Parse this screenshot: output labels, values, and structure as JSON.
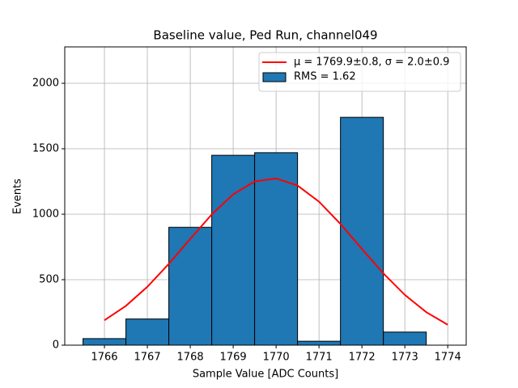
{
  "chart_data": {
    "type": "histogram",
    "title": "Baseline value, Ped Run, channel049",
    "xlabel": "Sample Value [ADC Counts]",
    "ylabel": "Events",
    "bins": [
      1765.5,
      1766.5,
      1767.5,
      1768.5,
      1769.5,
      1770.5,
      1771.5,
      1772.5,
      1773.5
    ],
    "series": [
      {
        "type": "line",
        "name": "μ = 1769.9±0.8, σ = 2.0±0.9",
        "color": "#ff0000",
        "x": [
          1766,
          1766.5,
          1767,
          1767.5,
          1768,
          1768.5,
          1769,
          1769.5,
          1770,
          1770.5,
          1771,
          1771.5,
          1772,
          1772.5,
          1773,
          1773.5,
          1774
        ],
        "values": [
          190,
          300,
          446,
          621,
          812,
          998,
          1152,
          1250,
          1273,
          1219,
          1096,
          926,
          735,
          548,
          384,
          252,
          156
        ]
      },
      {
        "type": "histogram",
        "name": "RMS = 1.62",
        "color": "#1f77b4",
        "values": [
          50,
          200,
          900,
          1450,
          1470,
          30,
          1740,
          100
        ]
      }
    ],
    "xlim": [
      1765.075,
      1774.43
    ],
    "ylim": [
      0,
      2278
    ],
    "xticks": [
      1766,
      1767,
      1768,
      1769,
      1770,
      1771,
      1772,
      1773,
      1774
    ],
    "yticks": [
      0,
      500,
      1000,
      1500,
      2000
    ],
    "grid": true,
    "legend": "upper right"
  }
}
